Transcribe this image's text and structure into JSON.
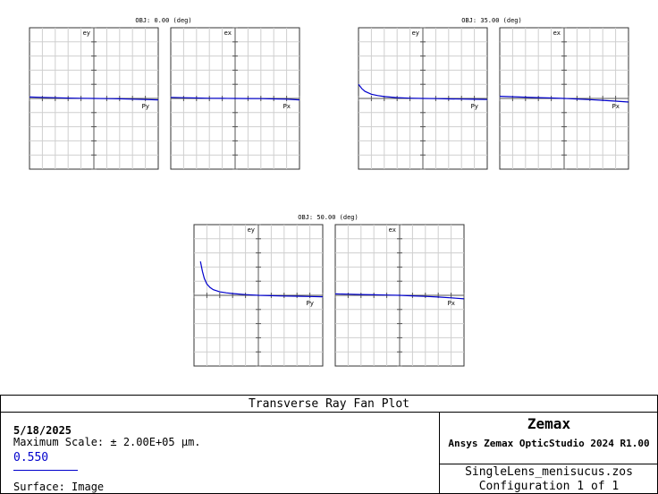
{
  "chart_data": {
    "type": "line",
    "title": "Transverse Ray Fan Plot",
    "line_color": "#0000cc",
    "grid": true,
    "fields": [
      {
        "label": "OBJ: 0.00 (deg)",
        "tangential": {
          "ylabel": "ey",
          "xlabel": "Py",
          "x": [
            -1,
            -0.8,
            -0.6,
            -0.4,
            -0.2,
            0,
            0.2,
            0.4,
            0.6,
            0.8,
            1
          ],
          "y": [
            0.02,
            0.015,
            0.01,
            0.005,
            0.002,
            0,
            -0.002,
            -0.005,
            -0.01,
            -0.015,
            -0.02
          ]
        },
        "sagittal": {
          "ylabel": "ex",
          "xlabel": "Px",
          "x": [
            -1,
            -0.8,
            -0.6,
            -0.4,
            -0.2,
            0,
            0.2,
            0.4,
            0.6,
            0.8,
            1
          ],
          "y": [
            0.015,
            0.01,
            0.006,
            0.003,
            0.001,
            0,
            -0.001,
            -0.003,
            -0.006,
            -0.01,
            -0.02
          ]
        }
      },
      {
        "label": "OBJ: 35.00 (deg)",
        "tangential": {
          "ylabel": "ey",
          "xlabel": "Py",
          "x": [
            -1,
            -0.95,
            -0.9,
            -0.8,
            -0.7,
            -0.6,
            -0.4,
            -0.2,
            0,
            0.2,
            0.4,
            0.6,
            0.8,
            1
          ],
          "y": [
            0.2,
            0.14,
            0.1,
            0.06,
            0.04,
            0.027,
            0.012,
            0.004,
            0,
            -0.003,
            -0.006,
            -0.009,
            -0.012,
            -0.015
          ]
        },
        "sagittal": {
          "ylabel": "ex",
          "xlabel": "Px",
          "x": [
            -1,
            -0.8,
            -0.6,
            -0.4,
            -0.2,
            0,
            0.2,
            0.4,
            0.6,
            0.8,
            1
          ],
          "y": [
            0.03,
            0.024,
            0.018,
            0.012,
            0.006,
            0,
            -0.008,
            -0.016,
            -0.026,
            -0.038,
            -0.05
          ]
        }
      },
      {
        "label": "OBJ: 50.00 (deg)",
        "tangential": {
          "ylabel": "ey",
          "xlabel": "Py",
          "x": [
            -0.9,
            -0.87,
            -0.84,
            -0.8,
            -0.75,
            -0.7,
            -0.6,
            -0.5,
            -0.4,
            -0.2,
            0,
            0.2,
            0.4,
            0.6,
            0.8,
            1
          ],
          "y": [
            0.48,
            0.34,
            0.24,
            0.16,
            0.11,
            0.08,
            0.05,
            0.035,
            0.025,
            0.01,
            0,
            -0.005,
            -0.01,
            -0.013,
            -0.016,
            -0.02
          ]
        },
        "sagittal": {
          "ylabel": "ex",
          "xlabel": "Px",
          "x": [
            -1,
            -0.8,
            -0.6,
            -0.4,
            -0.2,
            0,
            0.2,
            0.4,
            0.6,
            0.8,
            1
          ],
          "y": [
            0.02,
            0.016,
            0.012,
            0.008,
            0.004,
            0,
            -0.007,
            -0.015,
            -0.024,
            -0.035,
            -0.05
          ]
        }
      }
    ]
  },
  "info": {
    "title": "Transverse Ray Fan Plot",
    "date": "5/18/2025",
    "max_scale": "Maximum Scale: ± 2.00E+05 µm.",
    "wavelength": "0.550",
    "surface": "Surface: Image",
    "brand": "Zemax",
    "product": "Ansys Zemax OpticStudio 2024 R1.00",
    "filename": "SingleLens_menisucus.zos",
    "configuration": "Configuration 1 of 1"
  }
}
